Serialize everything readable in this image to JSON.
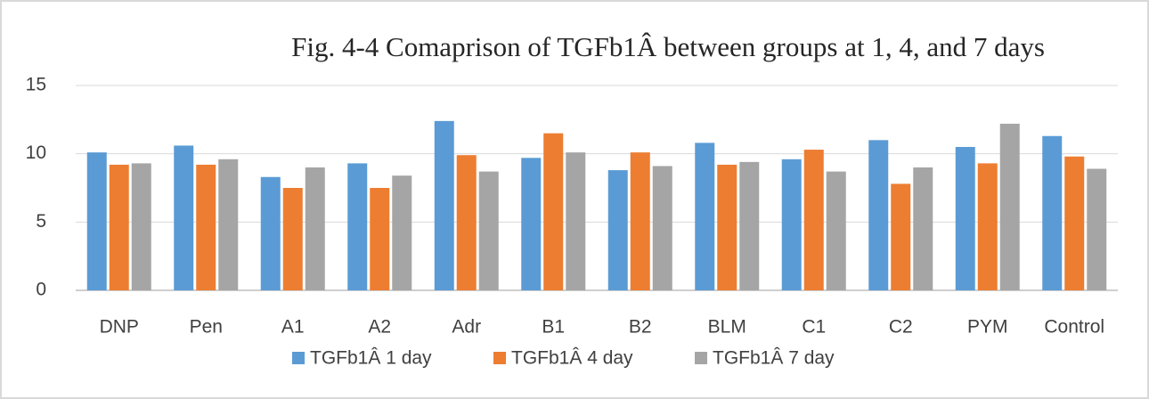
{
  "chart_data": {
    "type": "bar",
    "title": "Fig. 4-4 Comaprison of  TGFb1Â between groups at 1, 4, and 7 days",
    "categories": [
      "DNP",
      "Pen",
      "A1",
      "A2",
      "Adr",
      "B1",
      "B2",
      "BLM",
      "C1",
      "C2",
      "PYM",
      "Control"
    ],
    "series": [
      {
        "name": "TGFb1Â 1 day",
        "color": "#5b9bd5",
        "values": [
          10.1,
          10.6,
          8.3,
          9.3,
          12.4,
          9.7,
          8.8,
          10.8,
          9.6,
          11.0,
          10.5,
          11.3
        ]
      },
      {
        "name": "TGFb1Â 4 day",
        "color": "#ed7d31",
        "values": [
          9.2,
          9.2,
          7.5,
          7.5,
          9.9,
          11.5,
          10.1,
          9.2,
          10.3,
          7.8,
          9.3,
          9.8
        ]
      },
      {
        "name": "TGFb1Â 7 day",
        "color": "#a5a5a5",
        "values": [
          9.3,
          9.6,
          9.0,
          8.4,
          8.7,
          10.1,
          9.1,
          9.4,
          8.7,
          9.0,
          12.2,
          8.9
        ]
      }
    ],
    "ylim": [
      0,
      15
    ],
    "yticks": [
      0,
      5,
      10,
      15
    ],
    "grid": true,
    "legend": "bottom"
  }
}
